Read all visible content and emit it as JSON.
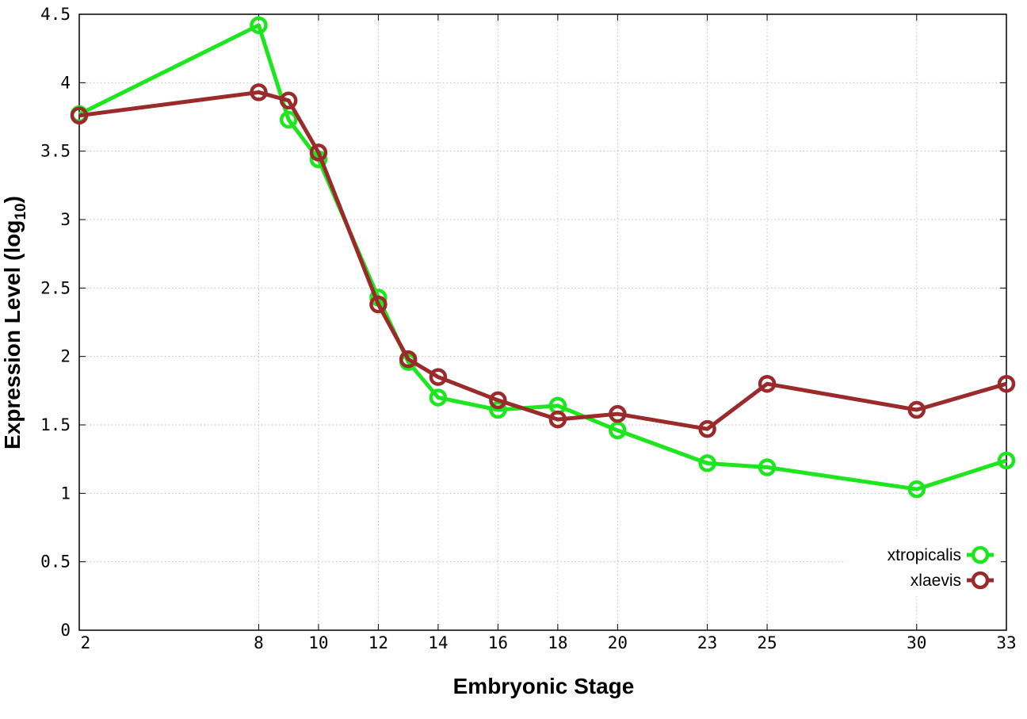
{
  "chart_data": {
    "type": "line",
    "xlabel": "Embryonic Stage",
    "ylabel": "Expression Level (log",
    "ylabel_sub": "10",
    "ylabel_close": ")",
    "xlim": [
      2,
      33
    ],
    "ylim": [
      0,
      4.5
    ],
    "x_ticks": [
      2,
      8,
      10,
      12,
      14,
      16,
      18,
      20,
      23,
      25,
      30,
      33
    ],
    "y_ticks": [
      0,
      0.5,
      1,
      1.5,
      2,
      2.5,
      3,
      3.5,
      4,
      4.5
    ],
    "y_tick_labels": [
      "0",
      "0.5",
      "1",
      "1.5",
      "2",
      "2.5",
      "3",
      "3.5",
      "4",
      "4.5"
    ],
    "grid": true,
    "legend_position": "bottom-right",
    "series": [
      {
        "name": "xtropicalis",
        "color": "#1ee61e",
        "x": [
          2,
          8,
          9,
          10,
          12,
          13,
          14,
          16,
          18,
          20,
          23,
          25,
          30,
          33
        ],
        "y": [
          3.77,
          4.42,
          3.73,
          3.44,
          2.43,
          1.96,
          1.7,
          1.61,
          1.64,
          1.46,
          1.22,
          1.19,
          1.03,
          1.24
        ]
      },
      {
        "name": "xlaevis",
        "color": "#9b2b2b",
        "x": [
          2,
          8,
          9,
          10,
          12,
          13,
          14,
          16,
          18,
          20,
          23,
          25,
          30,
          33
        ],
        "y": [
          3.76,
          3.93,
          3.87,
          3.49,
          2.38,
          1.98,
          1.85,
          1.68,
          1.54,
          1.58,
          1.47,
          1.8,
          1.61,
          1.8
        ]
      }
    ]
  }
}
